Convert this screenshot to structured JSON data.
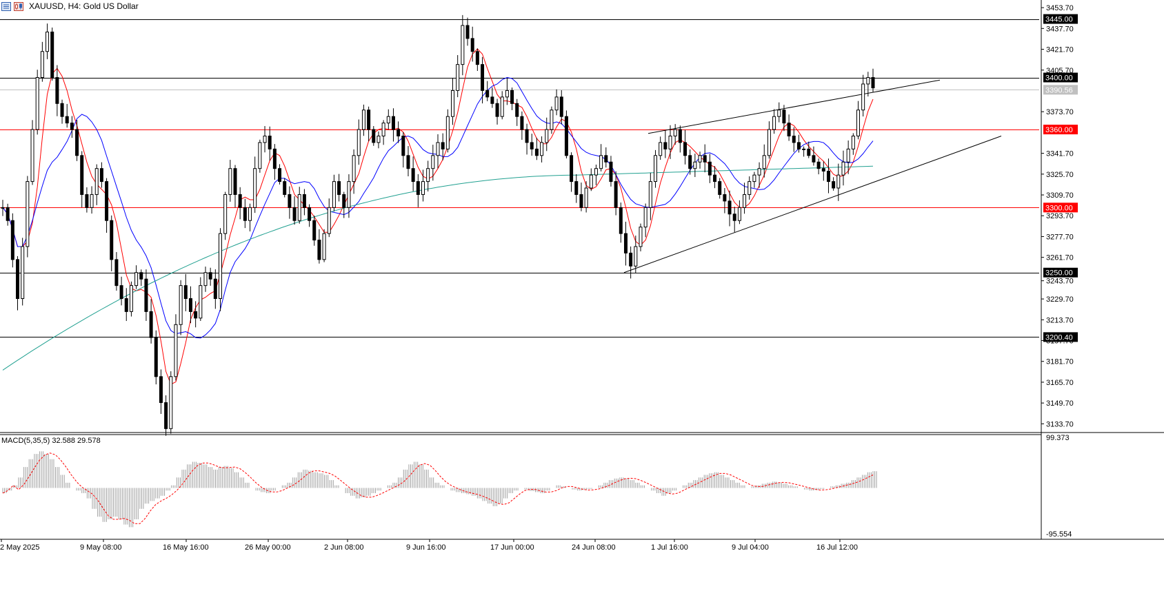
{
  "header": {
    "symbol_title": "XAUUSD, H4:  Gold US Dollar",
    "icons": [
      "chart-list-icon",
      "chart-candles-icon"
    ]
  },
  "colors": {
    "bull": "#000000",
    "bear": "#000000",
    "ma_fast": "#ff0000",
    "ma_mid": "#0000ff",
    "ma_slow": "#20a090",
    "hline_black": "#000000",
    "hline_red": "#ff0000",
    "hline_gray": "#c0c0c0",
    "macd_hist": "#a0a0a0",
    "macd_signal": "#ff0000"
  },
  "price_axis": {
    "ticks": [
      "3453.70",
      "3437.70",
      "3421.70",
      "3405.70",
      "3373.70",
      "3341.70",
      "3325.70",
      "3309.70",
      "3293.70",
      "3277.70",
      "3261.70",
      "3243.70",
      "3229.70",
      "3213.70",
      "3197.70",
      "3181.70",
      "3165.70",
      "3149.70",
      "3133.70"
    ],
    "labels": [
      {
        "text": "3445.00",
        "style": "black"
      },
      {
        "text": "3400.00",
        "style": "black"
      },
      {
        "text": "3390.56",
        "style": "gray"
      },
      {
        "text": "3360.00",
        "style": "red"
      },
      {
        "text": "3300.00",
        "style": "red"
      },
      {
        "text": "3250.00",
        "style": "black"
      },
      {
        "text": "3200.40",
        "style": "black"
      }
    ]
  },
  "time_axis": [
    "2 May 2025",
    "9 May 08:00",
    "16 May 16:00",
    "26 May 00:00",
    "2 Jun 08:00",
    "9 Jun 16:00",
    "17 Jun 00:00",
    "24 Jun 08:00",
    "1 Jul 16:00",
    "9 Jul 04:00",
    "16 Jul 12:00"
  ],
  "macd": {
    "label": "MACD(5,35,5) 32.588 29.578",
    "max_label": "99.373",
    "min_label": "-95.554"
  },
  "chart_data": {
    "type": "candlestick",
    "title": "XAUUSD, H4:  Gold US Dollar",
    "ylim": [
      3127,
      3458
    ],
    "horizontal_levels": [
      3445.0,
      3400.0,
      3390.56,
      3360.0,
      3300.0,
      3250.0,
      3200.4
    ],
    "ohlc_path": [
      3300,
      3290,
      3260,
      3230,
      3270,
      3320,
      3360,
      3400,
      3420,
      3435,
      3400,
      3380,
      3370,
      3365,
      3360,
      3340,
      3310,
      3300,
      3310,
      3330,
      3320,
      3290,
      3260,
      3240,
      3230,
      3220,
      3240,
      3250,
      3245,
      3220,
      3200,
      3170,
      3150,
      3130,
      3170,
      3210,
      3240,
      3230,
      3220,
      3215,
      3240,
      3250,
      3245,
      3230,
      3280,
      3310,
      3330,
      3310,
      3300,
      3290,
      3300,
      3330,
      3350,
      3355,
      3345,
      3330,
      3320,
      3310,
      3300,
      3290,
      3310,
      3300,
      3290,
      3275,
      3260,
      3280,
      3300,
      3320,
      3310,
      3300,
      3320,
      3340,
      3360,
      3375,
      3360,
      3350,
      3355,
      3365,
      3370,
      3360,
      3355,
      3340,
      3330,
      3320,
      3310,
      3320,
      3330,
      3340,
      3350,
      3345,
      3370,
      3390,
      3410,
      3440,
      3430,
      3420,
      3410,
      3390,
      3385,
      3380,
      3370,
      3385,
      3390,
      3380,
      3370,
      3360,
      3350,
      3345,
      3340,
      3350,
      3360,
      3375,
      3385,
      3370,
      3340,
      3320,
      3310,
      3300,
      3315,
      3325,
      3330,
      3340,
      3335,
      3320,
      3300,
      3280,
      3265,
      3255,
      3270,
      3285,
      3300,
      3320,
      3340,
      3350,
      3345,
      3355,
      3360,
      3350,
      3340,
      3330,
      3335,
      3340,
      3335,
      3325,
      3320,
      3310,
      3305,
      3295,
      3290,
      3300,
      3310,
      3320,
      3325,
      3330,
      3340,
      3360,
      3370,
      3375,
      3365,
      3355,
      3350,
      3345,
      3345,
      3340,
      3335,
      3330,
      3328,
      3320,
      3315,
      3325,
      3335,
      3345,
      3355,
      3375,
      3395,
      3400,
      3392
    ],
    "ma_fast_period": "fast",
    "ma_mid_period": "mid",
    "ma_slow_period": "slow",
    "macd_values": [
      -10,
      -5,
      5,
      20,
      40,
      55,
      65,
      70,
      65,
      55,
      40,
      25,
      10,
      0,
      -5,
      -10,
      -20,
      -40,
      -55,
      -65,
      -60,
      -55,
      -60,
      -70,
      -75,
      -60,
      -40,
      -30,
      -25,
      -20,
      -15,
      -5,
      5,
      20,
      35,
      45,
      50,
      48,
      45,
      40,
      35,
      40,
      42,
      38,
      30,
      20,
      10,
      0,
      -5,
      -8,
      -10,
      -5,
      0,
      5,
      10,
      20,
      30,
      35,
      33,
      30,
      28,
      25,
      15,
      5,
      0,
      -10,
      -15,
      -20,
      -18,
      -15,
      -10,
      -5,
      0,
      5,
      10,
      20,
      35,
      45,
      50,
      45,
      35,
      20,
      10,
      5,
      0,
      -5,
      -8,
      -10,
      -12,
      -15,
      -20,
      -25,
      -30,
      -35,
      -30,
      -20,
      -10,
      -5,
      0,
      -3,
      -6,
      -8,
      -10,
      -5,
      0,
      5,
      3,
      0,
      -3,
      -5,
      -4,
      -2,
      0,
      5,
      10,
      15,
      18,
      20,
      18,
      15,
      10,
      5,
      0,
      -5,
      -10,
      -15,
      -10,
      -5,
      0,
      5,
      10,
      15,
      20,
      25,
      28,
      30,
      25,
      20,
      15,
      10,
      5,
      0,
      3,
      5,
      8,
      10,
      12,
      10,
      8,
      5,
      3,
      0,
      -3,
      -5,
      -4,
      -2,
      0,
      3,
      5,
      8,
      10,
      15,
      20,
      25,
      30,
      32
    ]
  }
}
